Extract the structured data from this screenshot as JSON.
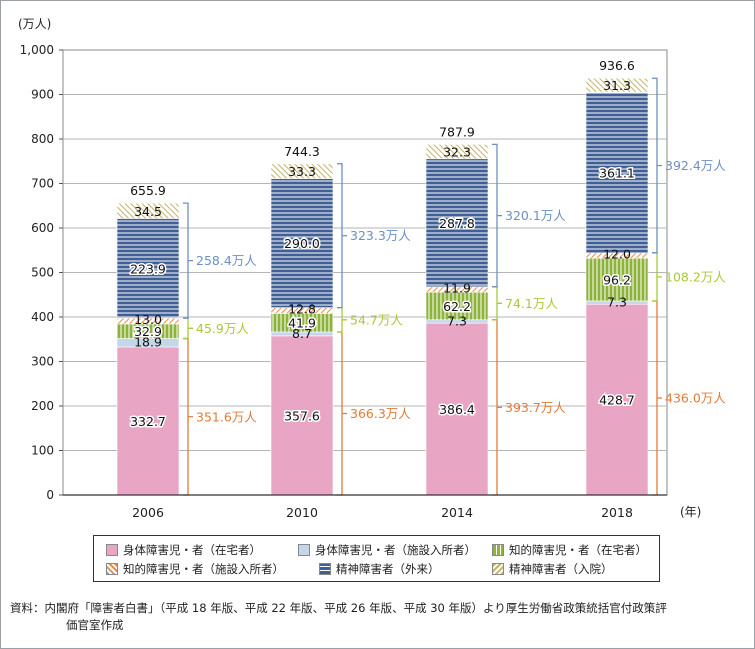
{
  "chart_data": {
    "type": "bar",
    "stacked": true,
    "ylabel": "(万人)",
    "xlabel": "(年)",
    "ylim": [
      0,
      1000
    ],
    "yticks": [
      "0",
      "100",
      "200",
      "300",
      "400",
      "500",
      "600",
      "700",
      "800",
      "900",
      "1,000"
    ],
    "categories": [
      "2006",
      "2010",
      "2014",
      "2018"
    ],
    "totals": [
      "655.9",
      "744.3",
      "787.9",
      "936.6"
    ],
    "series": [
      {
        "name": "身体障害児・者（在宅者）",
        "values": [
          332.7,
          357.6,
          386.4,
          428.7
        ],
        "labels": [
          "332.7",
          "357.6",
          "386.4",
          "428.7"
        ],
        "color": "#e8a5c4",
        "pattern": "solid"
      },
      {
        "name": "身体障害児・者（施設入所者）",
        "values": [
          18.9,
          8.7,
          7.3,
          7.3
        ],
        "labels": [
          "18.9",
          "8.7",
          "7.3",
          "7.3"
        ],
        "color": "#c5d5ea",
        "pattern": "solid"
      },
      {
        "name": "知的障害児・者（在宅者）",
        "values": [
          32.9,
          41.9,
          62.2,
          96.2
        ],
        "labels": [
          "32.9",
          "41.9",
          "62.2",
          "96.2"
        ],
        "color": "#8db33a",
        "pattern": "vertical"
      },
      {
        "name": "知的障害児・者（施設入所者）",
        "values": [
          13.0,
          12.8,
          11.9,
          12.0
        ],
        "labels": [
          "13.0",
          "12.8",
          "11.9",
          "12.0"
        ],
        "color": "#ea8a4e",
        "pattern": "diagonal"
      },
      {
        "name": "精神障害者（外来）",
        "values": [
          223.9,
          290.0,
          287.8,
          361.1
        ],
        "labels": [
          "223.9",
          "290.0",
          "287.8",
          "361.1"
        ],
        "color": "#3f5f96",
        "pattern": "horizontal"
      },
      {
        "name": "精神障害者（入院）",
        "values": [
          34.5,
          33.3,
          32.3,
          31.3
        ],
        "labels": [
          "34.5",
          "33.3",
          "32.3",
          "31.3"
        ],
        "color": "#cfc07c",
        "pattern": "diagonal"
      }
    ],
    "group_totals": [
      {
        "group": "physical",
        "color": "#e07b39",
        "values": [
          "351.6万人",
          "366.3万人",
          "393.7万人",
          "436.0万人"
        ]
      },
      {
        "group": "intellectual",
        "color": "#a9c93a",
        "values": [
          "45.9万人",
          "54.7万人",
          "74.1万人",
          "108.2万人"
        ]
      },
      {
        "group": "mental",
        "color": "#6c8fc7",
        "values": [
          "258.4万人",
          "323.3万人",
          "320.1万人",
          "392.4万人"
        ]
      }
    ],
    "legend_position": "bottom"
  },
  "source": {
    "line1": "資料：内閣府「障害者白書」（平成 18 年版、平成 22 年版、平成 26 年版、平成 30 年版）より厚生労働省政策統括官付政策評",
    "line2": "価官室作成"
  }
}
